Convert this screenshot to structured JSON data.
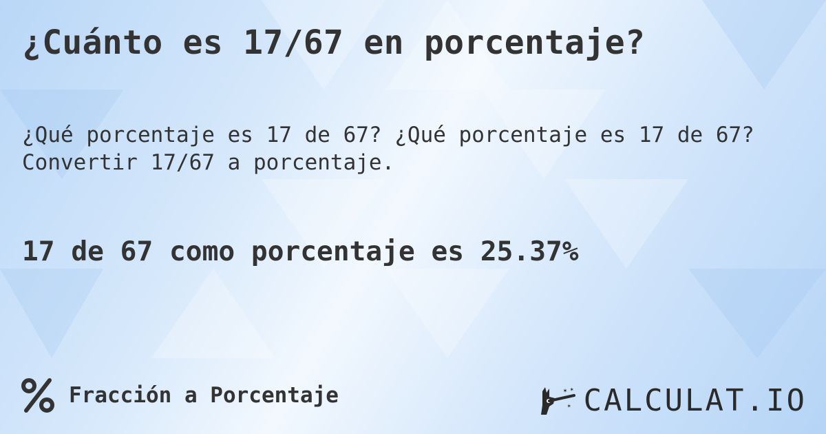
{
  "title": "¿Cuánto es 17/67 en porcentaje?",
  "description": "¿Qué porcentaje es 17 de 67? ¿Qué porcentaje es 17 de 67? Convertir 17/67 a porcentaje.",
  "result": "17 de 67 como porcentaje es 25.37%",
  "category": {
    "icon": "percent-icon",
    "label": "Fracción a Porcentaje"
  },
  "brand": {
    "icon": "magic-hand-wand-icon",
    "name": "CALCULAT.IO"
  },
  "colors": {
    "text": "#333333",
    "background": "#cfe4fa"
  }
}
